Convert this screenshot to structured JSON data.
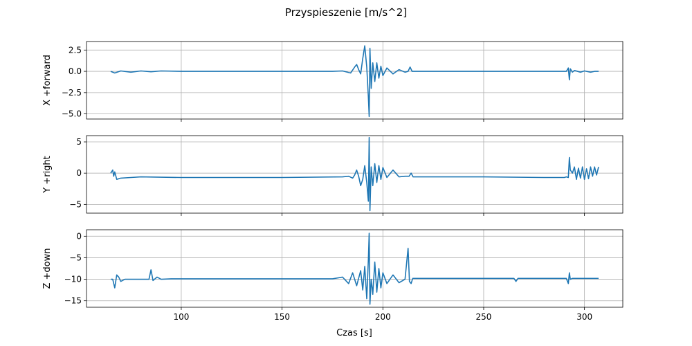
{
  "figure": {
    "title": "Przyspieszenie [m/s^2]",
    "xlabel": "Czas [s]"
  },
  "chart_data": [
    {
      "type": "line",
      "ylabel": "X +forward",
      "xlim": [
        53,
        319
      ],
      "ylim": [
        -5.6,
        3.5
      ],
      "xticks": [
        100,
        150,
        200,
        250,
        300
      ],
      "yticks": [
        -5.0,
        -2.5,
        0.0,
        2.5
      ],
      "ytick_labels": [
        "−5.0",
        "−2.5",
        "0.0",
        "2.5"
      ],
      "grid": true,
      "color": "#1f77b4",
      "series": [
        {
          "x": [
            65,
            67,
            70,
            75,
            80,
            85,
            90,
            100,
            120,
            150,
            175,
            180,
            184,
            186,
            187,
            188,
            189,
            190,
            191,
            192,
            192.8,
            193.2,
            193.6,
            194.2,
            195,
            196,
            197,
            198,
            199,
            200,
            202,
            205,
            208,
            211,
            212.5,
            213.5,
            214.5,
            220,
            250,
            280,
            291,
            292,
            292.5,
            293,
            294,
            295,
            298,
            300,
            303,
            305,
            307
          ],
          "y": [
            0.0,
            -0.2,
            0.05,
            -0.1,
            0.05,
            -0.05,
            0.05,
            0.0,
            0.0,
            0.0,
            0.0,
            0.05,
            -0.2,
            0.5,
            0.8,
            0.2,
            -0.3,
            1.5,
            3.0,
            0.5,
            -3.0,
            -5.3,
            2.7,
            -2.0,
            1.0,
            -1.2,
            1.0,
            -0.8,
            0.6,
            -0.5,
            0.4,
            -0.3,
            0.2,
            -0.1,
            0.0,
            0.5,
            0.0,
            0.0,
            0.0,
            0.0,
            0.0,
            0.4,
            -1.0,
            0.3,
            -0.1,
            0.1,
            -0.1,
            0.05,
            -0.1,
            0.0,
            0.0
          ]
        }
      ]
    },
    {
      "type": "line",
      "ylabel": "Y +right",
      "xlim": [
        53,
        319
      ],
      "ylim": [
        -6.4,
        6.0
      ],
      "xticks": [
        100,
        150,
        200,
        250,
        300
      ],
      "yticks": [
        -5,
        0,
        5
      ],
      "ytick_labels": [
        "−5",
        "0",
        "5"
      ],
      "grid": true,
      "color": "#1f77b4",
      "series": [
        {
          "x": [
            65,
            66,
            66.5,
            67,
            68,
            70,
            75,
            80,
            100,
            150,
            180,
            183,
            185,
            186,
            187,
            188,
            189,
            190,
            191,
            192,
            192.8,
            193.2,
            193.6,
            194.2,
            195,
            196,
            197,
            198,
            199,
            200,
            202,
            205,
            208,
            211,
            213,
            214,
            215,
            220,
            250,
            280,
            290,
            291,
            292,
            292.5,
            293,
            294,
            295,
            296,
            297,
            298,
            299,
            300,
            301,
            302,
            303,
            304,
            305,
            306,
            307
          ],
          "y": [
            0.0,
            0.5,
            -0.5,
            0.2,
            -1.0,
            -0.8,
            -0.7,
            -0.6,
            -0.7,
            -0.7,
            -0.6,
            -0.5,
            -0.8,
            -0.3,
            0.5,
            -0.5,
            -2.0,
            -1.0,
            1.2,
            -1.5,
            -4.5,
            5.7,
            -6.0,
            1.0,
            -2.0,
            1.5,
            -1.5,
            1.2,
            -1.0,
            0.9,
            -0.7,
            0.5,
            -0.6,
            -0.5,
            -0.5,
            0.0,
            -0.6,
            -0.6,
            -0.6,
            -0.7,
            -0.7,
            -0.6,
            -0.7,
            2.5,
            0.5,
            0.0,
            1.0,
            -1.0,
            0.8,
            -0.8,
            1.0,
            -1.0,
            0.7,
            -0.9,
            1.0,
            -0.5,
            1.0,
            -0.3,
            1.0
          ]
        }
      ]
    },
    {
      "type": "line",
      "ylabel": "Z +down",
      "xlim": [
        53,
        319
      ],
      "ylim": [
        -16.5,
        1.5
      ],
      "xticks": [
        100,
        150,
        200,
        250,
        300
      ],
      "yticks": [
        -15,
        -10,
        -5,
        0
      ],
      "ytick_labels": [
        "−15",
        "−10",
        "−5",
        "0"
      ],
      "grid": true,
      "color": "#1f77b4",
      "series": [
        {
          "x": [
            65,
            66,
            67,
            68,
            69,
            70,
            72,
            75,
            80,
            84,
            85,
            86,
            88,
            90,
            95,
            100,
            150,
            175,
            180,
            183,
            185,
            187,
            189,
            190,
            191,
            192,
            192.8,
            193.2,
            193.6,
            194.2,
            195,
            196,
            197,
            198,
            199,
            200,
            202,
            205,
            208,
            211,
            212.5,
            213.2,
            214,
            214.8,
            217,
            220,
            250,
            265,
            266,
            267,
            270,
            285,
            291,
            292,
            292.5,
            293,
            294,
            300,
            307
          ],
          "y": [
            -10.0,
            -10.0,
            -12.0,
            -9.0,
            -9.5,
            -10.5,
            -10.0,
            -10.0,
            -10.0,
            -10.0,
            -7.8,
            -10.3,
            -9.5,
            -10.0,
            -9.9,
            -9.9,
            -9.9,
            -9.9,
            -9.5,
            -11.0,
            -8.5,
            -11.5,
            -8.0,
            -12.5,
            -7.0,
            -14.5,
            -5.5,
            0.7,
            -15.8,
            -10.0,
            -13.5,
            -6.0,
            -13.0,
            -7.5,
            -12.0,
            -8.5,
            -11.0,
            -9.0,
            -10.8,
            -10.0,
            -2.8,
            -10.5,
            -11.0,
            -9.8,
            -9.8,
            -9.8,
            -9.8,
            -9.8,
            -10.5,
            -9.8,
            -9.8,
            -9.8,
            -9.8,
            -11.0,
            -8.5,
            -10.0,
            -9.8,
            -9.8,
            -9.8
          ]
        }
      ]
    }
  ]
}
